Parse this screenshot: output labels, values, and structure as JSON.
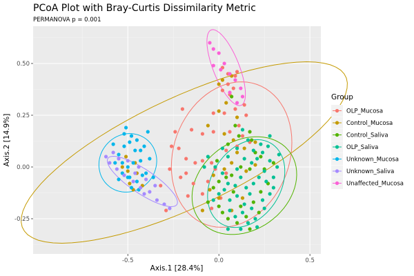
{
  "chart_data": {
    "type": "scatter",
    "title": "PCoA Plot with Bray-Curtis Dissimilarity Metric",
    "subtitle": "PERMANOVA p = 0.001",
    "xlabel": "Axis.1   [28.4%]",
    "ylabel": "Axis.2   [14.9%]",
    "xlim": [
      -1.02,
      0.56
    ],
    "ylim": [
      -0.42,
      0.68
    ],
    "x_ticks": [
      -0.5,
      0.0,
      0.5
    ],
    "x_tick_labels": [
      "-0.5",
      "0.0",
      "0.5"
    ],
    "y_ticks": [
      -0.25,
      0.0,
      0.25,
      0.5
    ],
    "y_tick_labels": [
      "-0.25",
      "0.00",
      "0.25",
      "0.50"
    ],
    "grid": true,
    "legend": {
      "title": "Group",
      "position": "right"
    },
    "series": [
      {
        "name": "OLP_Mucosa",
        "color": "#F8766D",
        "points": [
          [
            0.02,
            0.48
          ],
          [
            0.05,
            0.45
          ],
          [
            0.09,
            0.44
          ],
          [
            0.1,
            0.46
          ],
          [
            0.05,
            0.4
          ],
          [
            0.08,
            0.38
          ],
          [
            0.02,
            0.37
          ],
          [
            0.06,
            0.35
          ],
          [
            0.14,
            0.3
          ],
          [
            0.09,
            0.28
          ],
          [
            0.03,
            0.26
          ],
          [
            -0.03,
            0.26
          ],
          [
            0.15,
            0.25
          ],
          [
            0.11,
            0.2
          ],
          [
            0.06,
            0.17
          ],
          [
            0.13,
            0.15
          ],
          [
            -0.03,
            0.17
          ],
          [
            -0.09,
            0.16
          ],
          [
            -0.15,
            0.18
          ],
          [
            -0.2,
            0.28
          ],
          [
            -0.24,
            0.17
          ],
          [
            -0.26,
            0.1
          ],
          [
            -0.22,
            0.09
          ],
          [
            -0.18,
            0.04
          ],
          [
            -0.13,
            0.02
          ],
          [
            -0.09,
            0.03
          ],
          [
            -0.04,
            0.02
          ],
          [
            -0.02,
            -0.01
          ],
          [
            -0.18,
            -0.03
          ],
          [
            -0.21,
            -0.05
          ],
          [
            -0.14,
            -0.08
          ],
          [
            -0.17,
            -0.14
          ],
          [
            -0.09,
            -0.13
          ],
          [
            -0.06,
            -0.07
          ],
          [
            0.04,
            0.08
          ],
          [
            0.1,
            0.1
          ],
          [
            0.17,
            0.12
          ],
          [
            0.2,
            0.07
          ],
          [
            0.04,
            -0.03
          ],
          [
            -0.04,
            -0.2
          ],
          [
            0.01,
            -0.15
          ],
          [
            -0.29,
            -0.21
          ],
          [
            -0.32,
            -0.09
          ],
          [
            -0.27,
            -0.01
          ]
        ]
      },
      {
        "name": "Control_Mucosa",
        "color": "#C49A00",
        "points": [
          [
            0.0,
            0.4
          ],
          [
            0.02,
            0.42
          ],
          [
            0.07,
            0.44
          ],
          [
            0.04,
            0.31
          ],
          [
            0.0,
            0.27
          ],
          [
            0.1,
            0.24
          ],
          [
            0.03,
            0.16
          ],
          [
            -0.06,
            0.2
          ],
          [
            0.08,
            0.13
          ],
          [
            0.1,
            0.07
          ],
          [
            0.14,
            0.09
          ],
          [
            0.2,
            0.12
          ],
          [
            0.07,
            0.02
          ],
          [
            0.03,
            -0.01
          ],
          [
            -0.03,
            -0.04
          ],
          [
            -0.05,
            -0.11
          ],
          [
            0.0,
            -0.15
          ],
          [
            0.07,
            -0.21
          ],
          [
            -0.09,
            -0.21
          ],
          [
            0.15,
            -0.02
          ],
          [
            0.2,
            0.01
          ],
          [
            0.13,
            -0.15
          ],
          [
            -0.46,
            0.02
          ],
          [
            -0.5,
            -0.02
          ],
          [
            -0.51,
            0.05
          ],
          [
            -0.45,
            -0.03
          ],
          [
            -0.49,
            -0.08
          ],
          [
            -0.42,
            -0.09
          ],
          [
            -0.53,
            0.0
          ],
          [
            -0.47,
            -0.11
          ]
        ]
      },
      {
        "name": "Control_Saliva",
        "color": "#53B400",
        "points": [
          [
            0.07,
            0.34
          ],
          [
            0.09,
            0.2
          ],
          [
            0.17,
            0.17
          ],
          [
            0.11,
            0.15
          ],
          [
            0.05,
            0.11
          ],
          [
            0.2,
            0.07
          ],
          [
            0.23,
            0.05
          ],
          [
            0.17,
            -0.01
          ],
          [
            0.12,
            0.0
          ],
          [
            0.07,
            -0.04
          ],
          [
            0.0,
            -0.07
          ],
          [
            -0.03,
            -0.1
          ],
          [
            -0.06,
            -0.17
          ],
          [
            0.02,
            -0.22
          ],
          [
            0.05,
            -0.25
          ],
          [
            0.1,
            -0.27
          ],
          [
            0.15,
            -0.24
          ],
          [
            0.19,
            -0.17
          ],
          [
            0.23,
            -0.12
          ],
          [
            0.27,
            -0.08
          ],
          [
            0.25,
            -0.01
          ],
          [
            0.3,
            0.02
          ],
          [
            0.22,
            -0.22
          ],
          [
            0.08,
            -0.12
          ],
          [
            0.12,
            -0.19
          ],
          [
            0.17,
            -0.3
          ],
          [
            0.0,
            -0.19
          ],
          [
            0.04,
            -0.05
          ],
          [
            -0.01,
            0.03
          ],
          [
            0.18,
            0.13
          ]
        ]
      },
      {
        "name": "OLP_Saliva",
        "color": "#00C094",
        "points": [
          [
            0.14,
            0.04
          ],
          [
            0.18,
            0.02
          ],
          [
            0.21,
            0.04
          ],
          [
            0.24,
            0.07
          ],
          [
            0.27,
            0.1
          ],
          [
            0.28,
            0.03
          ],
          [
            0.25,
            -0.02
          ],
          [
            0.22,
            -0.05
          ],
          [
            0.19,
            -0.08
          ],
          [
            0.15,
            -0.1
          ],
          [
            0.12,
            -0.05
          ],
          [
            0.09,
            -0.09
          ],
          [
            0.05,
            -0.08
          ],
          [
            0.03,
            -0.11
          ],
          [
            0.0,
            -0.13
          ],
          [
            -0.03,
            -0.16
          ],
          [
            0.06,
            -0.16
          ],
          [
            0.1,
            -0.14
          ],
          [
            0.14,
            -0.18
          ],
          [
            0.18,
            -0.2
          ],
          [
            0.13,
            -0.22
          ],
          [
            0.16,
            -0.27
          ],
          [
            0.2,
            -0.25
          ],
          [
            0.24,
            -0.16
          ],
          [
            0.28,
            -0.13
          ],
          [
            0.26,
            -0.07
          ],
          [
            0.3,
            -0.05
          ],
          [
            0.32,
            0.0
          ],
          [
            0.33,
            0.06
          ],
          [
            0.23,
            0.11
          ],
          [
            0.16,
            0.13
          ],
          [
            0.1,
            0.09
          ],
          [
            0.05,
            0.05
          ],
          [
            -0.02,
            0.0
          ],
          [
            -0.08,
            0.0
          ],
          [
            -0.06,
            0.05
          ],
          [
            0.02,
            0.09
          ],
          [
            0.1,
            -0.01
          ],
          [
            0.17,
            -0.13
          ],
          [
            0.21,
            -0.29
          ],
          [
            0.12,
            -0.3
          ],
          [
            0.06,
            -0.21
          ],
          [
            0.25,
            -0.2
          ],
          [
            0.3,
            -0.1
          ],
          [
            0.19,
            0.08
          ],
          [
            0.13,
            0.18
          ],
          [
            0.09,
            -0.24
          ],
          [
            0.05,
            -0.3
          ],
          [
            0.02,
            -0.03
          ],
          [
            0.28,
            0.15
          ]
        ]
      },
      {
        "name": "Unknown_Mucosa",
        "color": "#00B6EB",
        "points": [
          [
            -0.51,
            0.19
          ],
          [
            -0.48,
            0.15
          ],
          [
            -0.52,
            0.1
          ],
          [
            -0.55,
            0.06
          ],
          [
            -0.57,
            0.02
          ],
          [
            -0.53,
            -0.03
          ],
          [
            -0.49,
            -0.05
          ],
          [
            -0.45,
            -0.07
          ],
          [
            -0.42,
            -0.04
          ],
          [
            -0.43,
            0.03
          ],
          [
            -0.46,
            0.08
          ],
          [
            -0.49,
            0.12
          ],
          [
            -0.41,
            0.1
          ],
          [
            -0.38,
            0.04
          ],
          [
            -0.4,
            -0.03
          ],
          [
            -0.5,
            0.0
          ],
          [
            -0.55,
            -0.06
          ],
          [
            -0.48,
            -0.1
          ],
          [
            -0.45,
            0.13
          ],
          [
            -0.52,
            0.16
          ],
          [
            -0.58,
            0.11
          ],
          [
            -0.39,
            0.17
          ],
          [
            -0.36,
            -0.05
          ],
          [
            -0.44,
            -0.11
          ],
          [
            -0.53,
            0.02
          ],
          [
            -0.47,
            0.02
          ],
          [
            -0.43,
            0.08
          ],
          [
            -0.5,
            -0.05
          ]
        ]
      },
      {
        "name": "Unknown_Saliva",
        "color": "#A58AFF",
        "points": [
          [
            -0.62,
            0.05
          ],
          [
            -0.6,
            0.02
          ],
          [
            -0.56,
            -0.01
          ],
          [
            -0.52,
            -0.04
          ],
          [
            -0.47,
            -0.07
          ],
          [
            -0.43,
            -0.1
          ],
          [
            -0.38,
            -0.12
          ],
          [
            -0.34,
            -0.16
          ],
          [
            -0.3,
            -0.18
          ],
          [
            -0.27,
            -0.2
          ],
          [
            -0.5,
            0.03
          ],
          [
            -0.44,
            0.0
          ],
          [
            -0.4,
            -0.06
          ],
          [
            -0.58,
            0.07
          ],
          [
            -0.35,
            -0.09
          ],
          [
            -0.46,
            -0.03
          ],
          [
            -0.55,
            0.04
          ],
          [
            -0.41,
            -0.13
          ]
        ]
      },
      {
        "name": "Unaffected_Mucosa",
        "color": "#FB61D7",
        "points": [
          [
            -0.05,
            0.6
          ],
          [
            -0.03,
            0.57
          ],
          [
            0.0,
            0.55
          ],
          [
            0.03,
            0.5
          ],
          [
            -0.03,
            0.49
          ],
          [
            0.06,
            0.45
          ],
          [
            0.09,
            0.42
          ],
          [
            0.12,
            0.38
          ],
          [
            0.13,
            0.34
          ],
          [
            0.1,
            0.31
          ],
          [
            0.06,
            0.36
          ],
          [
            0.01,
            0.47
          ]
        ]
      }
    ],
    "ellipses": [
      {
        "group": "Control_Mucosa",
        "center": [
          -0.19,
          0.07
        ],
        "rx": 0.96,
        "ry": 0.27,
        "angle_deg": 22
      },
      {
        "group": "OLP_Mucosa",
        "center": [
          0.07,
          0.06
        ],
        "rx": 0.37,
        "ry": 0.31,
        "angle_deg": 55
      },
      {
        "group": "Control_Saliva",
        "center": [
          0.14,
          -0.09
        ],
        "rx": 0.3,
        "ry": 0.22,
        "angle_deg": 25
      },
      {
        "group": "OLP_Saliva",
        "center": [
          0.15,
          -0.08
        ],
        "rx": 0.24,
        "ry": 0.18,
        "angle_deg": 45
      },
      {
        "group": "Unknown_Mucosa",
        "center": [
          -0.5,
          0.02
        ],
        "rx": 0.16,
        "ry": 0.14,
        "angle_deg": 15
      },
      {
        "group": "Unknown_Saliva",
        "center": [
          -0.42,
          -0.07
        ],
        "rx": 0.22,
        "ry": 0.06,
        "angle_deg": -30
      },
      {
        "group": "Unaffected_Mucosa",
        "center": [
          0.04,
          0.48
        ],
        "rx": 0.2,
        "ry": 0.07,
        "angle_deg": -65
      }
    ]
  }
}
